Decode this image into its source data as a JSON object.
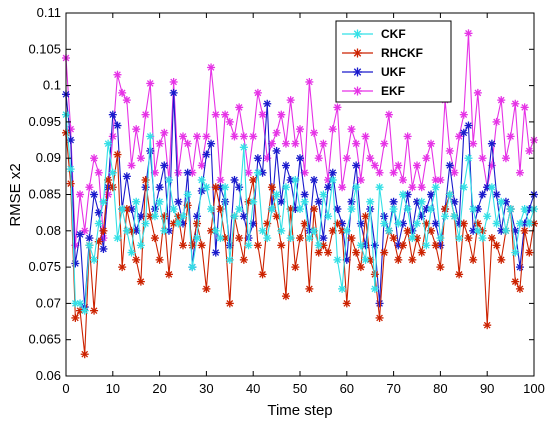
{
  "chart_data": {
    "type": "line",
    "title": "",
    "xlabel": "Time step",
    "ylabel": "RMSE x2",
    "xlim": [
      0,
      100
    ],
    "ylim": [
      0.06,
      0.11
    ],
    "xticks": [
      0,
      10,
      20,
      30,
      40,
      50,
      60,
      70,
      80,
      90,
      100
    ],
    "yticks": [
      0.06,
      0.065,
      0.07,
      0.075,
      0.08,
      0.085,
      0.09,
      0.095,
      0.1,
      0.105,
      0.11
    ],
    "xtick_labels": [
      "0",
      "10",
      "20",
      "30",
      "40",
      "50",
      "60",
      "70",
      "80",
      "90",
      "100"
    ],
    "ytick_labels": [
      "0.06",
      "0.065",
      "0.07",
      "0.075",
      "0.08",
      "0.085",
      "0.09",
      "0.095",
      "0.1",
      "0.105",
      "0.11"
    ],
    "grid": false,
    "legend_position": "top-right",
    "marker": "asterisk",
    "series": [
      {
        "name": "CKF",
        "color": "#33e0e6",
        "values": [
          0.096,
          0.0885,
          0.07,
          0.07,
          0.069,
          0.078,
          0.076,
          0.081,
          0.084,
          0.092,
          0.088,
          0.079,
          0.083,
          0.08,
          0.077,
          0.084,
          0.078,
          0.081,
          0.093,
          0.082,
          0.084,
          0.08,
          0.087,
          0.083,
          0.081,
          0.082,
          0.085,
          0.075,
          0.079,
          0.087,
          0.086,
          0.083,
          0.08,
          0.079,
          0.086,
          0.076,
          0.082,
          0.083,
          0.0915,
          0.078,
          0.084,
          0.088,
          0.08,
          0.079,
          0.083,
          0.085,
          0.08,
          0.086,
          0.079,
          0.087,
          0.083,
          0.084,
          0.079,
          0.08,
          0.078,
          0.085,
          0.082,
          0.087,
          0.076,
          0.072,
          0.08,
          0.083,
          0.086,
          0.078,
          0.076,
          0.084,
          0.072,
          0.086,
          0.081,
          0.08,
          0.083,
          0.081,
          0.085,
          0.083,
          0.079,
          0.081,
          0.084,
          0.078,
          0.083,
          0.086,
          0.079,
          0.082,
          0.085,
          0.082,
          0.079,
          0.086,
          0.09,
          0.083,
          0.08,
          0.079,
          0.082,
          0.086,
          0.081,
          0.084,
          0.08,
          0.083,
          0.077,
          0.081,
          0.083,
          0.081,
          0.083
        ]
      },
      {
        "name": "RHCKF",
        "color": "#cc2200",
        "values": [
          0.0935,
          0.0865,
          0.068,
          0.069,
          0.063,
          0.078,
          0.069,
          0.0785,
          0.08,
          0.087,
          0.086,
          0.0905,
          0.075,
          0.083,
          0.08,
          0.076,
          0.073,
          0.087,
          0.082,
          0.079,
          0.076,
          0.082,
          0.074,
          0.081,
          0.082,
          0.078,
          0.0835,
          0.078,
          0.081,
          0.078,
          0.072,
          0.08,
          0.086,
          0.083,
          0.079,
          0.07,
          0.082,
          0.079,
          0.076,
          0.084,
          0.087,
          0.078,
          0.074,
          0.081,
          0.086,
          0.082,
          0.078,
          0.071,
          0.083,
          0.075,
          0.079,
          0.081,
          0.072,
          0.083,
          0.077,
          0.078,
          0.077,
          0.08,
          0.081,
          0.08,
          0.07,
          0.079,
          0.077,
          0.075,
          0.082,
          0.076,
          0.074,
          0.068,
          0.077,
          0.08,
          0.079,
          0.076,
          0.078,
          0.08,
          0.076,
          0.079,
          0.077,
          0.081,
          0.08,
          0.078,
          0.075,
          0.083,
          0.085,
          0.082,
          0.074,
          0.081,
          0.079,
          0.076,
          0.081,
          0.08,
          0.067,
          0.079,
          0.078,
          0.076,
          0.08,
          0.083,
          0.073,
          0.072,
          0.08,
          0.077,
          0.081
        ]
      },
      {
        "name": "UKF",
        "color": "#1a1acc",
        "values": [
          0.0988,
          0.0925,
          0.0755,
          0.0795,
          0.0695,
          0.079,
          0.085,
          0.0825,
          0.0775,
          0.086,
          0.096,
          0.0945,
          0.083,
          0.0875,
          0.083,
          0.08,
          0.082,
          0.086,
          0.091,
          0.083,
          0.086,
          0.089,
          0.08,
          0.099,
          0.084,
          0.081,
          0.088,
          0.075,
          0.082,
          0.0855,
          0.0905,
          0.092,
          0.077,
          0.086,
          0.084,
          0.078,
          0.087,
          0.086,
          0.082,
          0.079,
          0.081,
          0.09,
          0.088,
          0.0975,
          0.083,
          0.091,
          0.084,
          0.089,
          0.087,
          0.083,
          0.09,
          0.085,
          0.08,
          0.087,
          0.084,
          0.079,
          0.086,
          0.088,
          0.083,
          0.081,
          0.076,
          0.084,
          0.089,
          0.081,
          0.078,
          0.083,
          0.078,
          0.07,
          0.082,
          0.08,
          0.084,
          0.078,
          0.081,
          0.085,
          0.08,
          0.084,
          0.082,
          0.083,
          0.085,
          0.081,
          0.078,
          0.083,
          0.089,
          0.084,
          0.081,
          0.0935,
          0.0945,
          0.08,
          0.083,
          0.085,
          0.086,
          0.092,
          0.085,
          0.08,
          0.084,
          0.083,
          0.08,
          0.075,
          0.081,
          0.083,
          0.085
        ]
      },
      {
        "name": "EKF",
        "color": "#e632e6",
        "values": [
          0.1038,
          0.094,
          0.078,
          0.085,
          0.08,
          0.086,
          0.09,
          0.088,
          0.079,
          0.085,
          0.093,
          0.1015,
          0.099,
          0.098,
          0.089,
          0.094,
          0.09,
          0.096,
          0.1003,
          0.088,
          0.092,
          0.0935,
          0.087,
          0.1005,
          0.088,
          0.093,
          0.092,
          0.088,
          0.093,
          0.089,
          0.093,
          0.1025,
          0.096,
          0.087,
          0.096,
          0.095,
          0.093,
          0.097,
          0.093,
          0.088,
          0.093,
          0.099,
          0.096,
          0.09,
          0.092,
          0.0935,
          0.096,
          0.092,
          0.098,
          0.092,
          0.094,
          0.088,
          0.1005,
          0.0935,
          0.09,
          0.092,
          0.087,
          0.094,
          0.097,
          0.086,
          0.09,
          0.094,
          0.092,
          0.087,
          0.093,
          0.09,
          0.089,
          0.088,
          0.092,
          0.096,
          0.088,
          0.089,
          0.087,
          0.093,
          0.086,
          0.089,
          0.086,
          0.09,
          0.092,
          0.087,
          0.087,
          0.098,
          0.091,
          0.088,
          0.093,
          0.096,
          0.1072,
          0.092,
          0.099,
          0.09,
          0.086,
          0.089,
          0.095,
          0.098,
          0.09,
          0.093,
          0.0975,
          0.088,
          0.097,
          0.091,
          0.0925
        ]
      }
    ]
  }
}
